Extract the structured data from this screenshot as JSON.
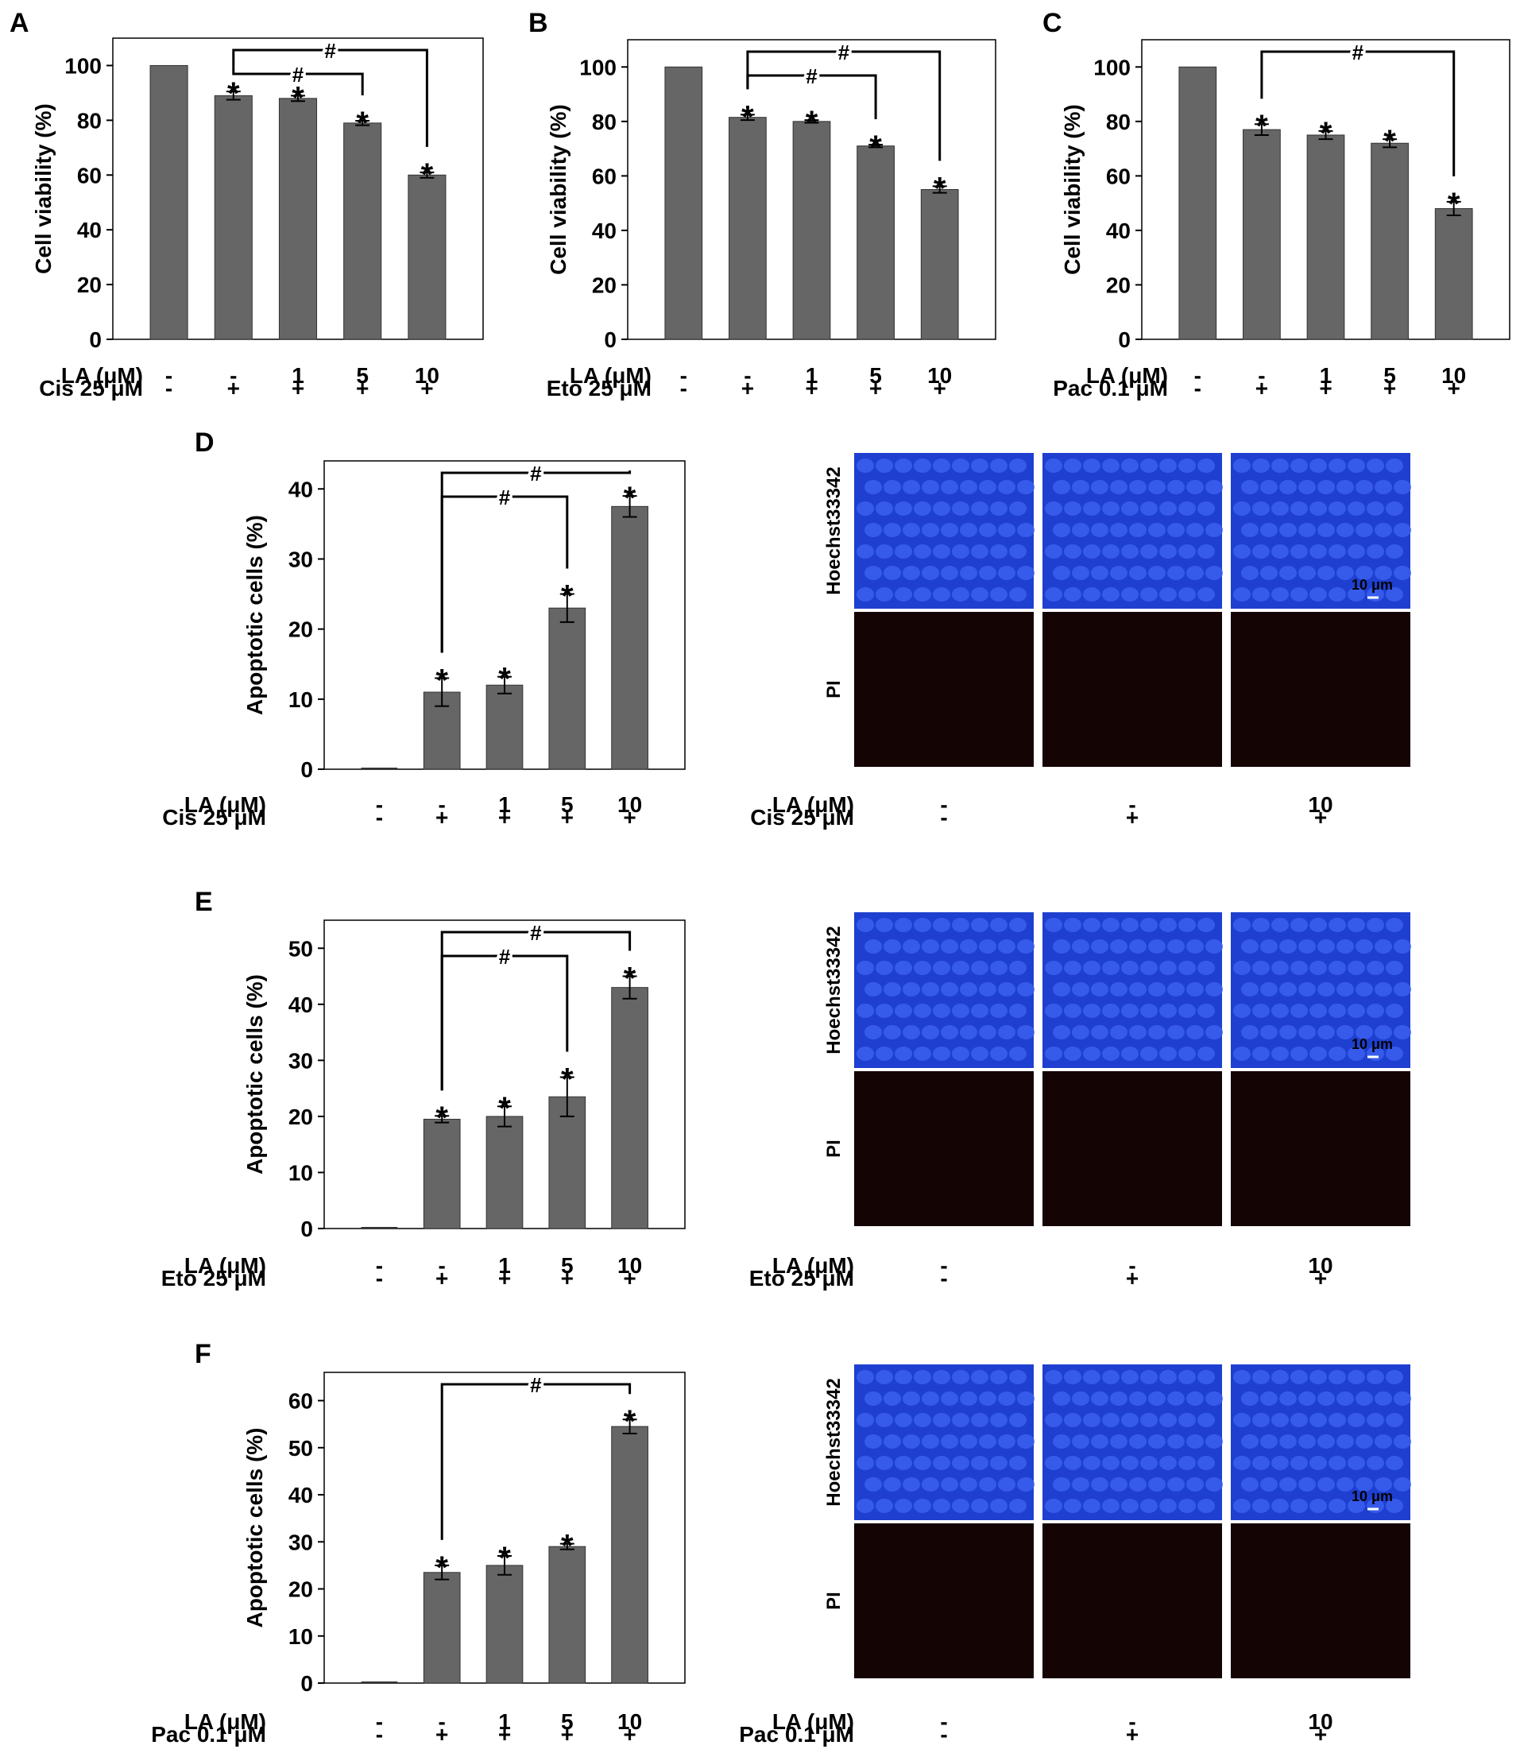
{
  "colors": {
    "bar": "#666666",
    "frame": "#000000",
    "hoechst": "#1e3fd0",
    "pi": "#140404"
  },
  "row_labels": {
    "la": "LA  (μM)",
    "plus": "+",
    "minus": "-"
  },
  "panels_text": {
    "hoechst": "Hoechst33342",
    "pi": "PI",
    "scale_bar": "10 μm"
  },
  "chart_data": [
    {
      "id": "A",
      "type": "bar",
      "ylabel": "Cell viability (%)",
      "ylim": [
        0,
        110
      ],
      "yticks": [
        0,
        20,
        40,
        60,
        80,
        100
      ],
      "values": [
        100,
        89,
        88,
        79,
        60
      ],
      "errors": [
        0,
        1.5,
        1,
        0.8,
        1
      ],
      "stars": [
        false,
        true,
        true,
        true,
        true
      ],
      "la_row": [
        "-",
        "-",
        "1",
        "5",
        "10"
      ],
      "drug_label": "Cis 25 μM",
      "drug_row": [
        "-",
        "+",
        "+",
        "+",
        "+"
      ],
      "brackets": [
        {
          "from": 1,
          "to": 4,
          "label": "#"
        },
        {
          "from": 1,
          "to": 3,
          "label": "#"
        }
      ]
    },
    {
      "id": "B",
      "type": "bar",
      "ylabel": "Cell viability (%)",
      "ylim": [
        0,
        110
      ],
      "yticks": [
        0,
        20,
        40,
        60,
        80,
        100
      ],
      "values": [
        100,
        81.5,
        80,
        71,
        55
      ],
      "errors": [
        0,
        1,
        0.5,
        0.5,
        1.2
      ],
      "stars": [
        false,
        true,
        true,
        true,
        true
      ],
      "la_row": [
        "-",
        "-",
        "1",
        "5",
        "10"
      ],
      "drug_label": "Eto 25 μM",
      "drug_row": [
        "-",
        "+",
        "+",
        "+",
        "+"
      ],
      "brackets": [
        {
          "from": 1,
          "to": 4,
          "label": "#"
        },
        {
          "from": 1,
          "to": 3,
          "label": "#"
        }
      ]
    },
    {
      "id": "C",
      "type": "bar",
      "ylabel": "Cell viability (%)",
      "ylim": [
        0,
        110
      ],
      "yticks": [
        0,
        20,
        40,
        60,
        80,
        100
      ],
      "values": [
        100,
        77,
        75,
        72,
        48
      ],
      "errors": [
        0,
        2,
        1.5,
        1.5,
        2.5
      ],
      "stars": [
        false,
        true,
        true,
        true,
        true
      ],
      "la_row": [
        "-",
        "-",
        "1",
        "5",
        "10"
      ],
      "drug_label": "Pac 0.1 μM",
      "drug_row": [
        "-",
        "+",
        "+",
        "+",
        "+"
      ],
      "brackets": [
        {
          "from": 1,
          "to": 4,
          "label": "#"
        }
      ]
    },
    {
      "id": "D",
      "type": "bar",
      "ylabel": "Apoptotic cells (%)",
      "ylim": [
        0,
        44
      ],
      "yticks": [
        0,
        10,
        20,
        30,
        40
      ],
      "values": [
        0,
        11,
        12,
        23,
        37.5
      ],
      "errors": [
        0,
        2,
        1.2,
        2,
        1.5
      ],
      "stars": [
        false,
        true,
        true,
        true,
        true
      ],
      "la_row": [
        "-",
        "-",
        "1",
        "5",
        "10"
      ],
      "drug_label": "Cis 25 μM",
      "drug_row": [
        "-",
        "+",
        "+",
        "+",
        "+"
      ],
      "brackets": [
        {
          "from": 1,
          "to": 4,
          "label": "#"
        },
        {
          "from": 1,
          "to": 3,
          "label": "#"
        }
      ],
      "image_labels": {
        "la": [
          "-",
          "-",
          "10"
        ],
        "drug": [
          "-",
          "+",
          "+"
        ]
      }
    },
    {
      "id": "E",
      "type": "bar",
      "ylabel": "Apoptotic cells (%)",
      "ylim": [
        0,
        55
      ],
      "yticks": [
        0,
        10,
        20,
        30,
        40,
        50
      ],
      "values": [
        0,
        19.5,
        20,
        23.5,
        43
      ],
      "errors": [
        0,
        0.6,
        1.8,
        3.5,
        2
      ],
      "stars": [
        false,
        true,
        true,
        true,
        true
      ],
      "la_row": [
        "-",
        "-",
        "1",
        "5",
        "10"
      ],
      "drug_label": "Eto 25 μM",
      "drug_row": [
        "-",
        "+",
        "+",
        "+",
        "+"
      ],
      "brackets": [
        {
          "from": 1,
          "to": 4,
          "label": "#"
        },
        {
          "from": 1,
          "to": 3,
          "label": "#"
        }
      ],
      "image_labels": {
        "la": [
          "-",
          "-",
          "10"
        ],
        "drug": [
          "-",
          "+",
          "+"
        ]
      }
    },
    {
      "id": "F",
      "type": "bar",
      "ylabel": "Apoptotic cells (%)",
      "ylim": [
        0,
        66
      ],
      "yticks": [
        0,
        10,
        20,
        30,
        40,
        50,
        60
      ],
      "values": [
        0,
        23.5,
        25,
        29,
        54.5
      ],
      "errors": [
        0,
        1.5,
        2,
        0.6,
        1.5
      ],
      "stars": [
        false,
        true,
        true,
        true,
        true
      ],
      "la_row": [
        "-",
        "-",
        "1",
        "5",
        "10"
      ],
      "drug_label": "Pac 0.1 μM",
      "drug_row": [
        "-",
        "+",
        "+",
        "+",
        "+"
      ],
      "brackets": [
        {
          "from": 1,
          "to": 4,
          "label": "#"
        }
      ],
      "image_labels": {
        "la": [
          "-",
          "-",
          "10"
        ],
        "drug": [
          "-",
          "+",
          "+"
        ]
      }
    }
  ]
}
